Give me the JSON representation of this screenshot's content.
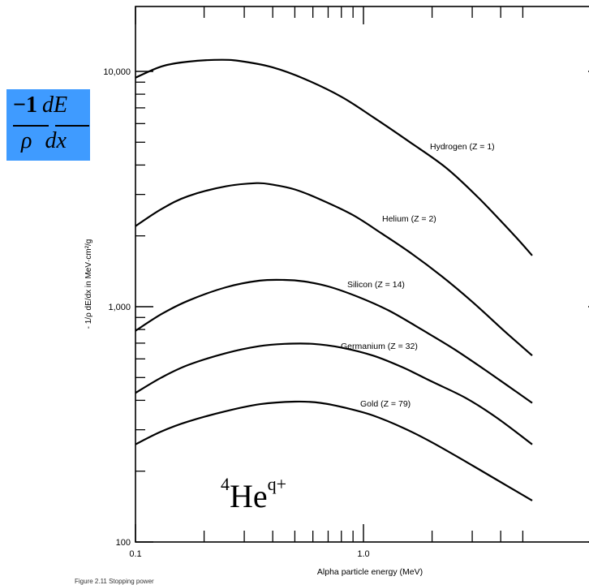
{
  "chart_data": {
    "type": "line",
    "xscale": "log",
    "yscale": "log",
    "xlim": [
      0.1,
      5.5
    ],
    "ylim": [
      100,
      20000
    ],
    "xlabel": "Alpha particle energy (MeV)",
    "ylabel": "- 1/ρ dE/dx in MeV·cm²/g",
    "xticklabels": [
      "0.1",
      "1.0"
    ],
    "xtickvalues": [
      0.1,
      1.0
    ],
    "yticklabels": [
      "100",
      "1,000",
      "10,000"
    ],
    "ytickvalues": [
      100,
      1000,
      10000
    ],
    "series": [
      {
        "name": "Hydrogen (Z = 1)",
        "x": [
          0.1,
          0.13,
          0.17,
          0.24,
          0.3,
          0.4,
          0.55,
          0.8,
          1.1,
          1.6,
          2.3,
          3.2,
          4.5,
          5.5
        ],
        "y": [
          9400,
          10500,
          11000,
          11200,
          11000,
          10400,
          9300,
          7800,
          6400,
          5000,
          3900,
          2900,
          2050,
          1650
        ]
      },
      {
        "name": "Helium (Z =  2)",
        "x": [
          0.1,
          0.13,
          0.17,
          0.25,
          0.34,
          0.4,
          0.5,
          0.65,
          0.9,
          1.2,
          1.6,
          2.2,
          3.0,
          4.2,
          5.5
        ],
        "y": [
          2200,
          2600,
          2950,
          3250,
          3350,
          3300,
          3150,
          2850,
          2450,
          2050,
          1700,
          1350,
          1050,
          780,
          620
        ]
      },
      {
        "name": "Silicon (Z = 14)",
        "x": [
          0.1,
          0.13,
          0.17,
          0.25,
          0.35,
          0.45,
          0.55,
          0.7,
          0.95,
          1.3,
          1.8,
          2.5,
          3.5,
          5.5
        ],
        "y": [
          790,
          930,
          1060,
          1210,
          1290,
          1300,
          1280,
          1220,
          1100,
          960,
          800,
          660,
          530,
          390
        ]
      },
      {
        "name": "Germanium (Z = 32)",
        "x": [
          0.1,
          0.13,
          0.17,
          0.25,
          0.35,
          0.45,
          0.6,
          0.8,
          1.1,
          1.5,
          2.0,
          2.8,
          3.8,
          5.5
        ],
        "y": [
          430,
          500,
          565,
          635,
          680,
          695,
          695,
          670,
          620,
          550,
          480,
          410,
          340,
          260
        ]
      },
      {
        "name": "Gold (Z = 79)",
        "x": [
          0.1,
          0.13,
          0.17,
          0.25,
          0.35,
          0.5,
          0.65,
          0.85,
          1.1,
          1.5,
          2.0,
          2.8,
          3.8,
          5.5
        ],
        "y": [
          260,
          295,
          325,
          360,
          385,
          395,
          390,
          370,
          345,
          305,
          265,
          220,
          185,
          150
        ]
      }
    ],
    "annotations": [
      "4Heq+"
    ]
  },
  "formula": {
    "minus_one": "−1",
    "dE": "dE",
    "rho": "ρ",
    "dx": "dx"
  },
  "ion": {
    "mass": "4",
    "symbol": "He",
    "charge": "q+"
  },
  "caption_fragment": "Figure 2.11  Stopping power"
}
